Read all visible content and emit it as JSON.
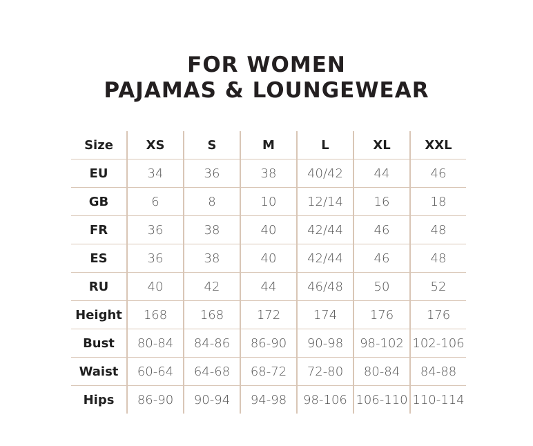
{
  "title": {
    "line1": "FOR WOMEN",
    "line2": "PAJAMAS & LOUNGEWEAR"
  },
  "colors": {
    "grid": "#d9c6b6",
    "text": "#231f20"
  },
  "table": {
    "header": [
      "Size",
      "XS",
      "S",
      "M",
      "L",
      "XL",
      "XXL"
    ],
    "rows": [
      [
        "EU",
        "34",
        "36",
        "38",
        "40/42",
        "44",
        "46"
      ],
      [
        "GB",
        "6",
        "8",
        "10",
        "12/14",
        "16",
        "18"
      ],
      [
        "FR",
        "36",
        "38",
        "40",
        "42/44",
        "46",
        "48"
      ],
      [
        "ES",
        "36",
        "38",
        "40",
        "42/44",
        "46",
        "48"
      ],
      [
        "RU",
        "40",
        "42",
        "44",
        "46/48",
        "50",
        "52"
      ],
      [
        "Height",
        "168",
        "168",
        "172",
        "174",
        "176",
        "176"
      ],
      [
        "Bust",
        "80-84",
        "84-86",
        "86-90",
        "90-98",
        "98-102",
        "102-106"
      ],
      [
        "Waist",
        "60-64",
        "64-68",
        "68-72",
        "72-80",
        "80-84",
        "84-88"
      ],
      [
        "Hips",
        "86-90",
        "90-94",
        "94-98",
        "98-106",
        "106-110",
        "110-114"
      ]
    ]
  }
}
